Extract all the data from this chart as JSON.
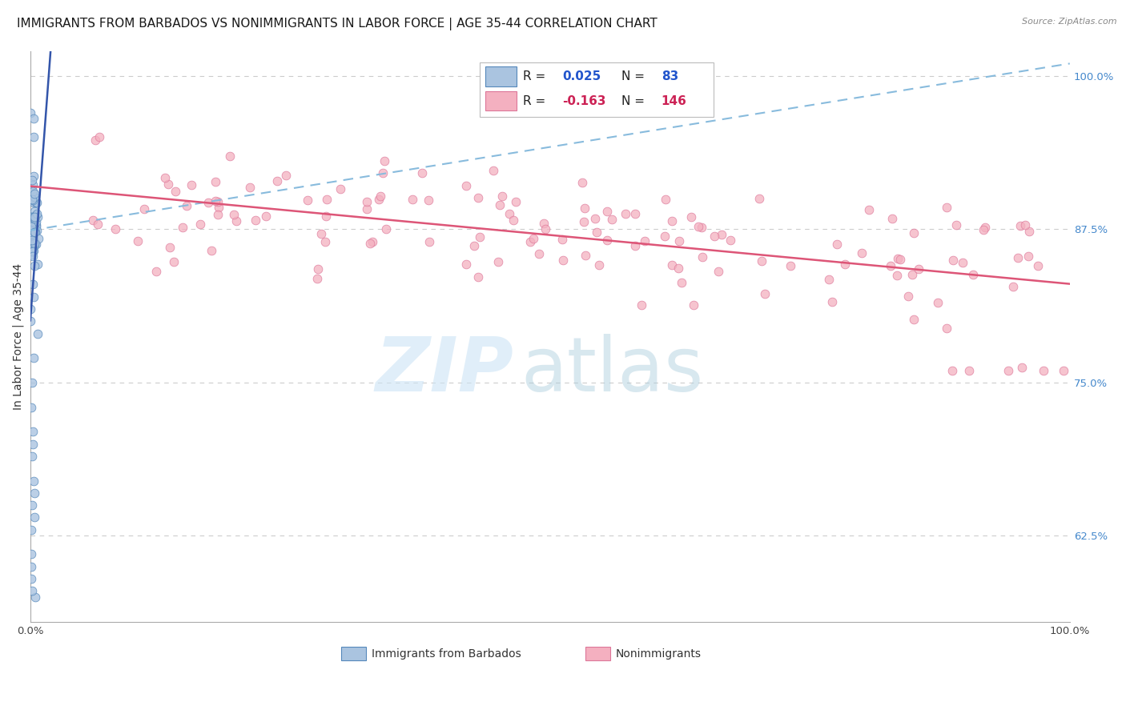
{
  "title": "IMMIGRANTS FROM BARBADOS VS NONIMMIGRANTS IN LABOR FORCE | AGE 35-44 CORRELATION CHART",
  "source": "Source: ZipAtlas.com",
  "ylabel": "In Labor Force | Age 35-44",
  "xlim": [
    0.0,
    1.0
  ],
  "ylim": [
    0.555,
    1.02
  ],
  "right_yticks": [
    1.0,
    0.875,
    0.75,
    0.625
  ],
  "right_yticklabels": [
    "100.0%",
    "87.5%",
    "75.0%",
    "62.5%"
  ],
  "R_blue": 0.025,
  "N_blue": 83,
  "R_pink": -0.163,
  "N_pink": 146,
  "background_color": "#ffffff",
  "grid_color": "#cccccc",
  "blue_color": "#aac4e0",
  "blue_edge_color": "#5588bb",
  "blue_line_color": "#3355aa",
  "blue_dash_color": "#88bbdd",
  "pink_color": "#f4b0c0",
  "pink_edge_color": "#dd7799",
  "pink_line_color": "#dd5577",
  "title_fontsize": 11,
  "axis_label_fontsize": 10,
  "tick_fontsize": 9.5
}
